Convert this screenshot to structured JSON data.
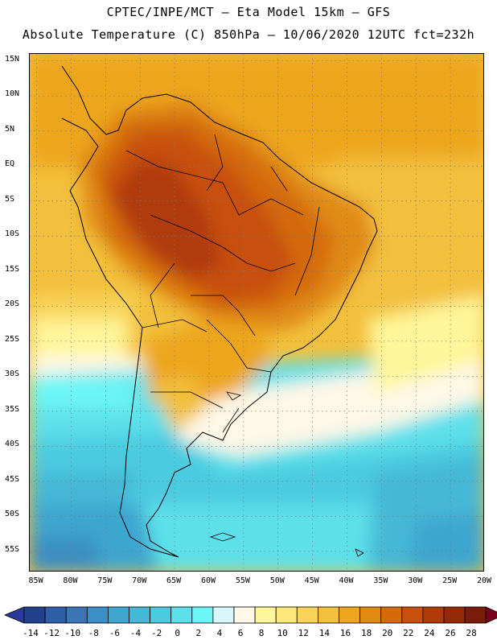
{
  "header": {
    "line1": "CPTEC/INPE/MCT –  Eta Model 15km – GFS",
    "line2": "Absolute Temperature (C) 850hPa – 10/06/2020 12UTC fct=232h"
  },
  "map": {
    "lat_labels": [
      "15N",
      "10N",
      "5N",
      "EQ",
      "5S",
      "10S",
      "15S",
      "20S",
      "25S",
      "30S",
      "35S",
      "40S",
      "45S",
      "50S",
      "55S"
    ],
    "lon_labels": [
      "85W",
      "80W",
      "75W",
      "70W",
      "65W",
      "60W",
      "55W",
      "50W",
      "45W",
      "40W",
      "35W",
      "30W",
      "25W",
      "20W"
    ],
    "lat_range": [
      -58,
      16
    ],
    "lon_range": [
      -86,
      -20
    ]
  },
  "colorbar": {
    "labels": [
      "-14",
      "-12",
      "-10",
      "-8",
      "-6",
      "-4",
      "-2",
      "0",
      "2",
      "4",
      "6",
      "8",
      "10",
      "12",
      "14",
      "16",
      "18",
      "20",
      "22",
      "24",
      "26",
      "28"
    ],
    "colors": [
      "#22408c",
      "#2e5ea6",
      "#3a76b6",
      "#3b8fc4",
      "#3ea6cf",
      "#45b8d6",
      "#4ccbe0",
      "#5de0ea",
      "#6cf6f6",
      "#d9f6fa",
      "#fef8e6",
      "#fff59a",
      "#fde67a",
      "#f9d45a",
      "#f2c03c",
      "#eda61e",
      "#e08a12",
      "#d46a0a",
      "#c8500a",
      "#b03a08",
      "#952a08",
      "#7a1c0a"
    ],
    "under_color": "#2a3a9a",
    "over_color": "#7a001e"
  }
}
